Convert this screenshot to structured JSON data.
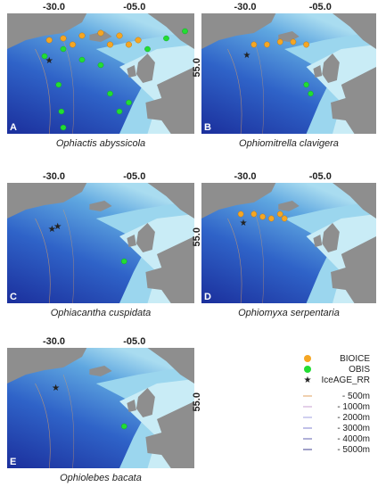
{
  "panels": [
    {
      "letter": "A",
      "species": "Ophiactis abyssicola",
      "lon_labels": [
        "-30.0",
        "-05.0"
      ],
      "lat_label": "55.0"
    },
    {
      "letter": "B",
      "species": "Ophiomitrella clavigera",
      "lon_labels": [
        "-30.0",
        "-05.0"
      ]
    },
    {
      "letter": "C",
      "species": "Ophiacantha cuspidata",
      "lon_labels": [
        "-30.0",
        "-05.0"
      ],
      "lat_label": "55.0"
    },
    {
      "letter": "D",
      "species": "Ophiomyxa serpentaria",
      "lon_labels": [
        "-30.0",
        "-05.0"
      ]
    },
    {
      "letter": "E",
      "species": "Ophiolebes bacata",
      "lon_labels": [
        "-30.0",
        "-05.0"
      ],
      "lat_label": "55.0"
    }
  ],
  "legend": {
    "markers": [
      "BIOICE",
      "OBIS",
      "IceAGE_RR"
    ],
    "depths": [
      "- 500m",
      "- 1000m",
      "- 2000m",
      "- 3000m",
      "- 4000m",
      "- 5000m"
    ]
  }
}
